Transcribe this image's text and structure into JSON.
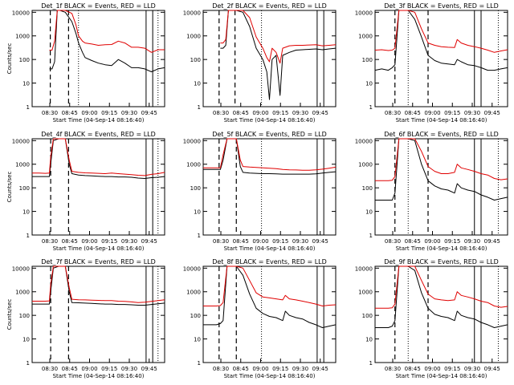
{
  "figure": {
    "background": "#ffffff",
    "colors": {
      "events": "#000000",
      "lld": "#e00000",
      "axes": "#000000"
    }
  },
  "chart_data": [
    {
      "type": "line",
      "title": "Det_1f BLACK = Events, RED = LLD",
      "xlabel": "Start Time (04-Sep-14 08:16:40)",
      "ylabel": "Counts/sec",
      "x_ticks": [
        "08:30",
        "08:45",
        "09:00",
        "09:15",
        "09:30",
        "09:45"
      ],
      "y_ticks": [
        "1",
        "10",
        "100",
        "1000",
        "10000"
      ],
      "xlim": [
        "08:16:40",
        "09:56:40"
      ],
      "ylim": [
        1,
        12000
      ],
      "yscale": "log",
      "x_minutes": [
        13,
        15,
        17,
        19,
        21,
        25,
        30,
        33,
        35,
        38,
        40,
        45,
        50,
        55,
        60,
        65,
        70,
        75,
        80,
        85,
        90,
        95,
        100
      ],
      "series": [
        {
          "values": [
            40,
            40,
            80,
            12000,
            12000,
            10000,
            4000,
            1300,
            500,
            200,
            120,
            90,
            70,
            60,
            55,
            100,
            70,
            45,
            45,
            40,
            30,
            40,
            45
          ]
        },
        {
          "values": [
            250,
            250,
            600,
            12000,
            12000,
            12000,
            9000,
            3000,
            1000,
            600,
            500,
            450,
            400,
            420,
            430,
            600,
            500,
            330,
            330,
            300,
            200,
            260,
            260
          ]
        }
      ],
      "lines": {
        "dashed": [
          13.7,
          27.5
        ],
        "dotted": [
          35,
          95
        ],
        "solid": [
          86,
          91
        ]
      }
    },
    {
      "type": "line",
      "title": "Det_2f BLACK = Events, RED = LLD",
      "xlabel": "Start Time (04-Sep-14 08:16:40)",
      "ylabel": "",
      "x_ticks": [
        "08:30",
        "08:45",
        "09:00",
        "09:15",
        "09:30",
        "09:45"
      ],
      "y_ticks": [
        "1",
        "10",
        "100",
        "1000",
        "10000"
      ],
      "xlim": [
        "08:16:40",
        "09:56:40"
      ],
      "ylim": [
        1,
        12000
      ],
      "yscale": "log",
      "x_minutes": [
        13,
        15,
        17,
        19,
        21,
        25,
        30,
        35,
        40,
        45,
        48,
        50,
        52,
        55,
        58,
        60,
        65,
        70,
        75,
        80,
        85,
        90,
        95,
        100
      ],
      "series": [
        {
          "values": [
            300,
            300,
            400,
            12000,
            12000,
            12000,
            10000,
            2500,
            300,
            100,
            30,
            2,
            100,
            150,
            3,
            150,
            200,
            250,
            260,
            270,
            280,
            260,
            280,
            300
          ]
        },
        {
          "values": [
            500,
            500,
            700,
            12000,
            12000,
            12000,
            12000,
            6000,
            900,
            300,
            120,
            80,
            300,
            200,
            70,
            300,
            380,
            400,
            400,
            410,
            420,
            380,
            400,
            420
          ]
        }
      ],
      "lines": {
        "dashed": [
          12,
          24
        ],
        "dotted": [
          44
        ],
        "solid": [
          86,
          91
        ]
      }
    },
    {
      "type": "line",
      "title": "Det_3f BLACK = Events, RED = LLD",
      "xlabel": "Start Time (04-Sep-14 08:16:40)",
      "ylabel": "",
      "x_ticks": [
        "08:30",
        "08:45",
        "09:00",
        "09:15",
        "09:30",
        "09:45"
      ],
      "y_ticks": [
        "1",
        "10",
        "100",
        "1000",
        "10000"
      ],
      "xlim": [
        "08:16:40",
        "09:56:40"
      ],
      "ylim": [
        1,
        12000
      ],
      "yscale": "log",
      "x_minutes": [
        0,
        5,
        10,
        13,
        15,
        18,
        20,
        25,
        30,
        35,
        40,
        45,
        50,
        55,
        60,
        62,
        65,
        70,
        75,
        80,
        85,
        90,
        95,
        100
      ],
      "series": [
        {
          "values": [
            35,
            40,
            35,
            45,
            60,
            12000,
            12000,
            12000,
            5000,
            900,
            150,
            90,
            70,
            65,
            60,
            100,
            80,
            60,
            55,
            45,
            35,
            35,
            40,
            45
          ]
        },
        {
          "values": [
            250,
            260,
            240,
            250,
            300,
            12000,
            12000,
            12000,
            10000,
            2000,
            500,
            400,
            350,
            330,
            320,
            700,
            500,
            400,
            350,
            300,
            250,
            200,
            230,
            260
          ]
        }
      ],
      "lines": {
        "dashed": [
          15,
          40
        ],
        "dotted": [
          25,
          93
        ],
        "solid": [
          75,
          80
        ]
      }
    },
    {
      "type": "line",
      "title": "Det_4f BLACK = Events, RED = LLD",
      "xlabel": "Start Time (04-Sep-14 08:16:40)",
      "ylabel": "Counts/sec",
      "x_ticks": [
        "08:30",
        "08:45",
        "09:00",
        "09:15",
        "09:30",
        "09:45"
      ],
      "y_ticks": [
        "1",
        "10",
        "100",
        "1000",
        "10000"
      ],
      "xlim": [
        "08:16:40",
        "09:56:40"
      ],
      "ylim": [
        1,
        12000
      ],
      "yscale": "log",
      "x_minutes": [
        0,
        5,
        10,
        13,
        14,
        16,
        20,
        25,
        28,
        30,
        35,
        40,
        45,
        50,
        55,
        60,
        65,
        70,
        75,
        80,
        85,
        90,
        95,
        100
      ],
      "series": [
        {
          "values": [
            300,
            300,
            300,
            300,
            1000,
            10000,
            12000,
            12000,
            1000,
            400,
            350,
            330,
            320,
            310,
            300,
            300,
            290,
            290,
            280,
            260,
            250,
            270,
            280,
            300
          ]
        },
        {
          "values": [
            420,
            420,
            410,
            420,
            2000,
            12000,
            12000,
            12000,
            1500,
            500,
            450,
            430,
            420,
            410,
            400,
            420,
            400,
            380,
            360,
            340,
            330,
            370,
            400,
            450
          ]
        }
      ],
      "lines": {
        "dashed": [
          14,
          27.5
        ],
        "dotted": [
          95
        ],
        "solid": [
          86,
          91
        ]
      }
    },
    {
      "type": "line",
      "title": "Det_5f BLACK = Events, RED = LLD",
      "xlabel": "Start Time (04-Sep-14 08:16:40)",
      "ylabel": "",
      "x_ticks": [
        "08:30",
        "08:45",
        "09:00",
        "09:15",
        "09:30",
        "09:45"
      ],
      "y_ticks": [
        "1",
        "10",
        "100",
        "1000",
        "10000"
      ],
      "xlim": [
        "08:16:40",
        "09:56:40"
      ],
      "ylim": [
        1,
        12000
      ],
      "yscale": "log",
      "x_minutes": [
        0,
        5,
        10,
        13,
        15,
        18,
        20,
        25,
        28,
        30,
        35,
        40,
        45,
        50,
        55,
        60,
        65,
        70,
        75,
        80,
        85,
        90,
        95,
        100
      ],
      "series": [
        {
          "values": [
            600,
            600,
            600,
            600,
            1500,
            12000,
            12000,
            12000,
            800,
            450,
            420,
            410,
            400,
            400,
            390,
            380,
            380,
            380,
            380,
            380,
            390,
            420,
            450,
            480
          ]
        },
        {
          "values": [
            700,
            700,
            700,
            700,
            2500,
            12000,
            12000,
            12000,
            1500,
            800,
            760,
            730,
            700,
            680,
            650,
            600,
            580,
            570,
            560,
            560,
            580,
            620,
            680,
            750
          ]
        }
      ],
      "lines": {
        "dashed": [
          12,
          25
        ],
        "dotted": [
          44
        ],
        "solid": [
          86,
          91
        ]
      }
    },
    {
      "type": "line",
      "title": "Det_6f BLACK = Events, RED = LLD",
      "xlabel": "Start Time (04-Sep-14 08:16:40)",
      "ylabel": "",
      "x_ticks": [
        "08:30",
        "08:45",
        "09:00",
        "09:15",
        "09:30",
        "09:45"
      ],
      "y_ticks": [
        "1",
        "10",
        "100",
        "1000",
        "10000"
      ],
      "xlim": [
        "08:16:40",
        "09:56:40"
      ],
      "ylim": [
        1,
        12000
      ],
      "yscale": "log",
      "x_minutes": [
        0,
        5,
        10,
        13,
        15,
        18,
        20,
        25,
        30,
        35,
        40,
        45,
        50,
        55,
        60,
        62,
        65,
        70,
        75,
        80,
        85,
        90,
        95,
        100
      ],
      "series": [
        {
          "values": [
            30,
            30,
            30,
            30,
            60,
            12000,
            12000,
            12000,
            10000,
            1000,
            200,
            120,
            90,
            80,
            60,
            150,
            100,
            80,
            70,
            50,
            40,
            30,
            35,
            40
          ]
        },
        {
          "values": [
            200,
            200,
            200,
            210,
            300,
            12000,
            12000,
            12000,
            12000,
            3500,
            800,
            500,
            400,
            400,
            450,
            1000,
            700,
            600,
            500,
            400,
            350,
            250,
            220,
            240
          ]
        }
      ],
      "lines": {
        "dashed": [
          15,
          40
        ],
        "dotted": [
          25,
          93
        ],
        "solid": [
          75,
          80
        ]
      }
    },
    {
      "type": "line",
      "title": "Det_7f BLACK = Events, RED = LLD",
      "xlabel": "Start Time (04-Sep-14 08:16:40)",
      "ylabel": "Counts/sec",
      "x_ticks": [
        "08:30",
        "08:45",
        "09:00",
        "09:15",
        "09:30",
        "09:45"
      ],
      "y_ticks": [
        "1",
        "10",
        "100",
        "1000",
        "10000"
      ],
      "xlim": [
        "08:16:40",
        "09:56:40"
      ],
      "ylim": [
        1,
        12000
      ],
      "yscale": "log",
      "x_minutes": [
        0,
        5,
        10,
        13,
        14,
        16,
        20,
        25,
        28,
        30,
        35,
        40,
        45,
        50,
        55,
        60,
        65,
        70,
        75,
        80,
        85,
        90,
        95,
        100
      ],
      "series": [
        {
          "values": [
            300,
            300,
            300,
            300,
            1000,
            10000,
            12000,
            12000,
            1000,
            350,
            340,
            330,
            320,
            310,
            300,
            300,
            290,
            290,
            280,
            270,
            270,
            290,
            310,
            330
          ]
        },
        {
          "values": [
            400,
            400,
            400,
            410,
            2000,
            12000,
            12000,
            12000,
            1500,
            480,
            460,
            450,
            440,
            430,
            420,
            420,
            400,
            390,
            370,
            350,
            360,
            390,
            420,
            460
          ]
        }
      ],
      "lines": {
        "dashed": [
          14,
          27.5
        ],
        "dotted": [
          95
        ],
        "solid": [
          86,
          91
        ]
      }
    },
    {
      "type": "line",
      "title": "Det_8f BLACK = Events, RED = LLD",
      "xlabel": "Start Time (04-Sep-14 08:16:40)",
      "ylabel": "",
      "x_ticks": [
        "08:30",
        "08:45",
        "09:00",
        "09:15",
        "09:30",
        "09:45"
      ],
      "y_ticks": [
        "1",
        "10",
        "100",
        "1000",
        "10000"
      ],
      "xlim": [
        "08:16:40",
        "09:56:40"
      ],
      "ylim": [
        1,
        12000
      ],
      "yscale": "log",
      "x_minutes": [
        0,
        5,
        10,
        13,
        15,
        18,
        20,
        25,
        30,
        35,
        40,
        45,
        50,
        55,
        60,
        62,
        65,
        70,
        75,
        80,
        85,
        90,
        95,
        100
      ],
      "series": [
        {
          "values": [
            40,
            40,
            40,
            45,
            60,
            12000,
            12000,
            12000,
            5000,
            800,
            200,
            120,
            90,
            80,
            60,
            150,
            100,
            80,
            70,
            50,
            40,
            30,
            35,
            40
          ]
        },
        {
          "values": [
            250,
            250,
            250,
            260,
            350,
            12000,
            12000,
            12000,
            10000,
            3000,
            900,
            600,
            550,
            500,
            450,
            700,
            500,
            450,
            400,
            350,
            300,
            250,
            270,
            280
          ]
        }
      ],
      "lines": {
        "dashed": [
          12,
          25
        ],
        "dotted": [
          44
        ],
        "solid": [
          86,
          91
        ]
      }
    },
    {
      "type": "line",
      "title": "Det_9f BLACK = Events, RED = LLD",
      "xlabel": "Start Time (04-Sep-14 08:16:40)",
      "ylabel": "",
      "x_ticks": [
        "08:30",
        "08:45",
        "09:00",
        "09:15",
        "09:30",
        "09:45"
      ],
      "y_ticks": [
        "1",
        "10",
        "100",
        "1000",
        "10000"
      ],
      "xlim": [
        "08:16:40",
        "09:56:40"
      ],
      "ylim": [
        1,
        12000
      ],
      "yscale": "log",
      "x_minutes": [
        0,
        5,
        10,
        13,
        15,
        18,
        20,
        25,
        30,
        35,
        40,
        45,
        50,
        55,
        60,
        62,
        65,
        70,
        75,
        80,
        85,
        90,
        95,
        100
      ],
      "series": [
        {
          "values": [
            30,
            30,
            30,
            35,
            60,
            12000,
            12000,
            12000,
            8000,
            900,
            200,
            110,
            90,
            80,
            60,
            150,
            100,
            80,
            70,
            50,
            40,
            30,
            35,
            40
          ]
        },
        {
          "values": [
            200,
            200,
            200,
            210,
            300,
            12000,
            12000,
            12000,
            12000,
            3000,
            800,
            500,
            450,
            420,
            450,
            1000,
            700,
            600,
            500,
            400,
            350,
            250,
            220,
            240
          ]
        }
      ],
      "lines": {
        "dashed": [
          15,
          40
        ],
        "dotted": [
          25,
          93
        ],
        "solid": [
          75,
          80
        ]
      }
    }
  ]
}
